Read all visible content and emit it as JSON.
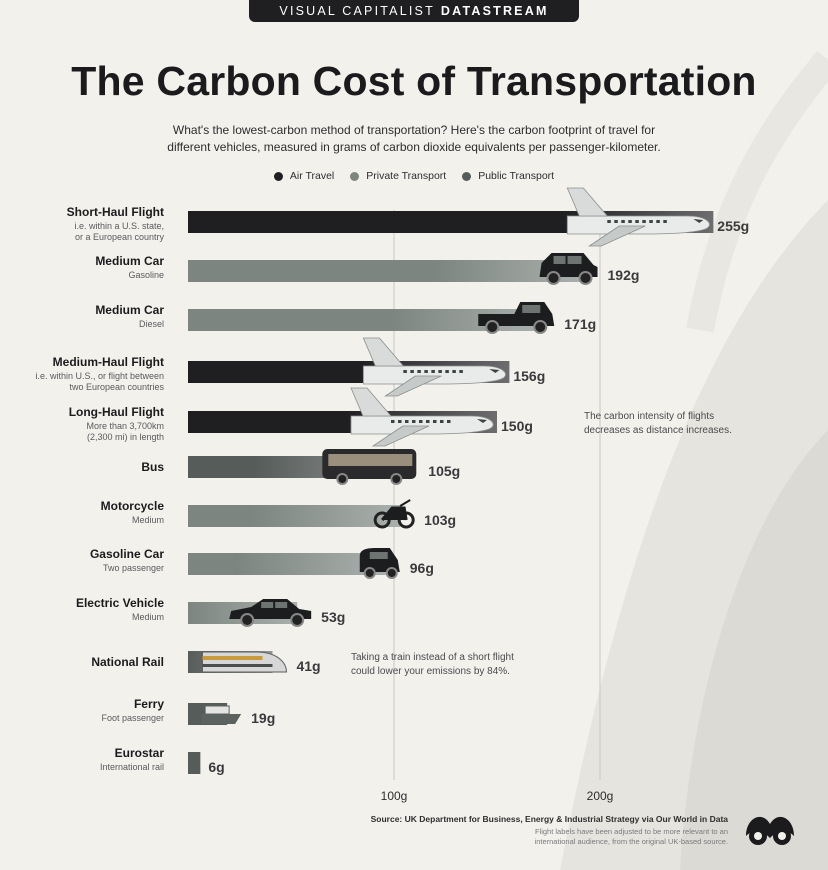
{
  "brand": {
    "prefix": "VISUAL CAPITALIST",
    "suffix": "DATASTREAM"
  },
  "colors": {
    "air": "#1f1f22",
    "private": "#7c8580",
    "public": "#565c5a",
    "background": "#f3f1ec",
    "gridline": "#c8c8c8"
  },
  "chart_data": {
    "type": "bar",
    "orientation": "horizontal",
    "title": "The Carbon Cost of Transportation",
    "subtitle_line1": "What's the lowest-carbon method of transportation? Here's the carbon footprint of travel for",
    "subtitle_line2": "different vehicles, measured in grams of carbon dioxide equivalents per passenger-kilometer.",
    "unit": "g",
    "xlim": [
      0,
      255
    ],
    "ticks": [
      {
        "value": 100,
        "label": "100g"
      },
      {
        "value": 200,
        "label": "200g"
      }
    ],
    "legend": [
      {
        "key": "air",
        "label": "Air Travel",
        "color": "#1f1f22"
      },
      {
        "key": "private",
        "label": "Private Transport",
        "color": "#7c8580"
      },
      {
        "key": "public",
        "label": "Public Transport",
        "color": "#565c5a"
      }
    ],
    "bars": [
      {
        "name": "Short-Haul Flight",
        "sub": [
          "i.e. within a U.S. state,",
          "or a European country"
        ],
        "value": 255,
        "label": "255g",
        "category": "air",
        "icon": "airplane-icon"
      },
      {
        "name": "Medium Car",
        "sub": [
          "Gasoline"
        ],
        "value": 192,
        "label": "192g",
        "category": "private",
        "icon": "suv-icon"
      },
      {
        "name": "Medium Car",
        "sub": [
          "Diesel"
        ],
        "value": 171,
        "label": "171g",
        "category": "private",
        "icon": "pickup-truck-icon"
      },
      {
        "name": "Medium-Haul Flight",
        "sub": [
          "i.e. within U.S., or flight between",
          "two European countries"
        ],
        "value": 156,
        "label": "156g",
        "category": "air",
        "icon": "airplane-icon"
      },
      {
        "name": "Long-Haul Flight",
        "sub": [
          "More than 3,700km",
          "(2,300 mi) in length"
        ],
        "value": 150,
        "label": "150g",
        "category": "air",
        "icon": "airplane-icon"
      },
      {
        "name": "Bus",
        "sub": [],
        "value": 105,
        "label": "105g",
        "category": "public",
        "icon": "bus-icon"
      },
      {
        "name": "Motorcycle",
        "sub": [
          "Medium"
        ],
        "value": 103,
        "label": "103g",
        "category": "private",
        "icon": "motorcycle-icon"
      },
      {
        "name": "Gasoline Car",
        "sub": [
          "Two passenger"
        ],
        "value": 96,
        "label": "96g",
        "category": "private",
        "icon": "small-car-icon"
      },
      {
        "name": "Electric Vehicle",
        "sub": [
          "Medium"
        ],
        "value": 53,
        "label": "53g",
        "category": "private",
        "icon": "sedan-icon"
      },
      {
        "name": "National Rail",
        "sub": [],
        "value": 41,
        "label": "41g",
        "category": "public",
        "icon": "train-icon"
      },
      {
        "name": "Ferry",
        "sub": [
          "Foot passenger"
        ],
        "value": 19,
        "label": "19g",
        "category": "public",
        "icon": "ferry-icon"
      },
      {
        "name": "Eurostar",
        "sub": [
          "International rail"
        ],
        "value": 6,
        "label": "6g",
        "category": "public",
        "icon": ""
      }
    ],
    "annotations": [
      {
        "line1": "The carbon intensity of flights",
        "line2": "decreases as distance increases."
      },
      {
        "line1": "Taking a train instead of a short flight",
        "line2": "could lower your emissions by 84%."
      }
    ]
  },
  "footer": {
    "source": "Source: UK Department for Business, Energy & Industrial Strategy via Our World in Data",
    "disclaimer_line1": "Flight labels have been adjusted to be more relevant to an",
    "disclaimer_line2": "international audience, from the original UK-based source."
  }
}
